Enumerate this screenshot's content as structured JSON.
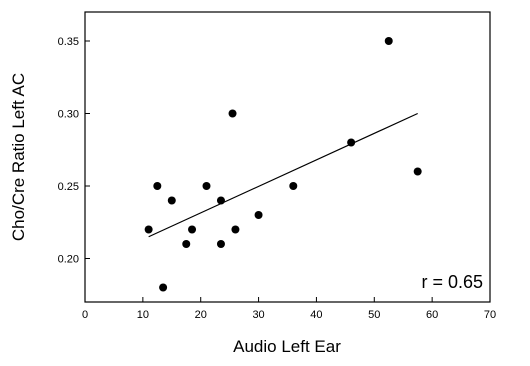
{
  "chart_data": {
    "type": "scatter",
    "xlabel": "Audio Left Ear",
    "ylabel": "Cho/Cre Ratio Left AC",
    "xlim": [
      0,
      70
    ],
    "ylim": [
      0.17,
      0.37
    ],
    "xticks": [
      0,
      10,
      20,
      30,
      40,
      50,
      60,
      70
    ],
    "yticks": [
      0.2,
      0.25,
      0.3,
      0.35
    ],
    "ytick_labels": [
      "0.20",
      "0.25",
      "0.30",
      "0.35"
    ],
    "grid": false,
    "points": [
      {
        "x": 11,
        "y": 0.22
      },
      {
        "x": 12.5,
        "y": 0.25
      },
      {
        "x": 13.5,
        "y": 0.18
      },
      {
        "x": 15,
        "y": 0.24
      },
      {
        "x": 17.5,
        "y": 0.21
      },
      {
        "x": 18.5,
        "y": 0.22
      },
      {
        "x": 21,
        "y": 0.25
      },
      {
        "x": 23.5,
        "y": 0.24
      },
      {
        "x": 23.5,
        "y": 0.21
      },
      {
        "x": 25.5,
        "y": 0.3
      },
      {
        "x": 26,
        "y": 0.22
      },
      {
        "x": 30,
        "y": 0.23
      },
      {
        "x": 36,
        "y": 0.25
      },
      {
        "x": 46,
        "y": 0.28
      },
      {
        "x": 52.5,
        "y": 0.35
      },
      {
        "x": 57.5,
        "y": 0.26
      }
    ],
    "fit_line": {
      "x": [
        11,
        57.5
      ],
      "y": [
        0.215,
        0.3
      ]
    },
    "annotation": "r = 0.65"
  }
}
